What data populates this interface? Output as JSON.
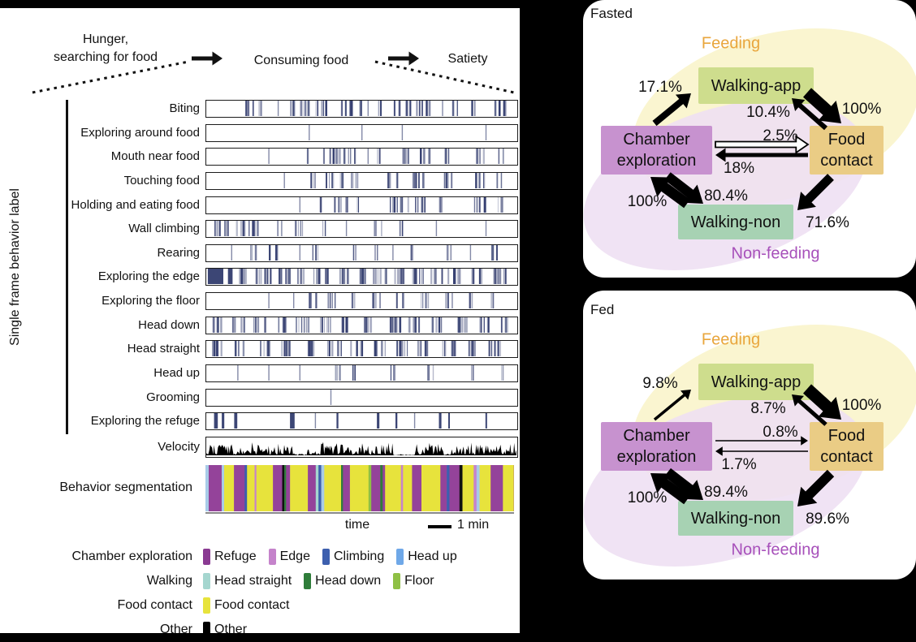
{
  "header": {
    "stage1_line1": "Hunger,",
    "stage1_line2": "searching for food",
    "stage2": "Consuming food",
    "stage3": "Satiety"
  },
  "left_panel": {
    "axis_label": "Single frame behavior label",
    "rows": [
      {
        "label": "Biting",
        "clusters": [
          [
            0.14,
            0.02,
            7
          ],
          [
            0.18,
            0.012,
            4
          ],
          [
            0.3,
            0.035,
            12
          ],
          [
            0.37,
            0.02,
            7
          ],
          [
            0.45,
            0.02,
            6
          ],
          [
            0.49,
            0.01,
            3
          ],
          [
            0.56,
            0.008,
            2
          ],
          [
            0.63,
            0.03,
            9
          ],
          [
            0.7,
            0.025,
            8
          ],
          [
            0.8,
            0.008,
            2
          ],
          [
            0.86,
            0.012,
            3
          ],
          [
            0.95,
            0.025,
            8
          ]
        ],
        "singles": [
          0.23,
          0.52,
          0.76
        ]
      },
      {
        "label": "Exploring around food",
        "clusters": [],
        "singles": [
          0.33,
          0.5,
          0.63,
          0.9
        ]
      },
      {
        "label": "Mouth near food",
        "clusters": [
          [
            0.33,
            0.01,
            3
          ],
          [
            0.4,
            0.03,
            9
          ],
          [
            0.46,
            0.02,
            6
          ],
          [
            0.55,
            0.008,
            2
          ],
          [
            0.63,
            0.025,
            7
          ],
          [
            0.7,
            0.02,
            5
          ],
          [
            0.78,
            0.015,
            4
          ],
          [
            0.88,
            0.015,
            4
          ],
          [
            0.95,
            0.01,
            3
          ]
        ],
        "singles": [
          0.2,
          0.52
        ]
      },
      {
        "label": "Touching food",
        "clusters": [
          [
            0.34,
            0.01,
            3
          ],
          [
            0.41,
            0.03,
            9
          ],
          [
            0.48,
            0.015,
            4
          ],
          [
            0.6,
            0.02,
            5
          ],
          [
            0.68,
            0.02,
            6
          ],
          [
            0.78,
            0.015,
            4
          ],
          [
            0.88,
            0.02,
            5
          ],
          [
            0.94,
            0.01,
            3
          ]
        ],
        "singles": [
          0.25
        ]
      },
      {
        "label": "Holding and eating food",
        "clusters": [
          [
            0.37,
            0.008,
            2
          ],
          [
            0.43,
            0.025,
            7
          ],
          [
            0.48,
            0.012,
            3
          ],
          [
            0.62,
            0.03,
            9
          ],
          [
            0.69,
            0.02,
            6
          ],
          [
            0.76,
            0.012,
            3
          ],
          [
            0.88,
            0.025,
            7
          ],
          [
            0.95,
            0.012,
            3
          ]
        ],
        "singles": [
          0.3
        ]
      },
      {
        "label": "Wall climbing",
        "clusters": [
          [
            0.05,
            0.025,
            7
          ],
          [
            0.11,
            0.015,
            4
          ],
          [
            0.16,
            0.025,
            7
          ],
          [
            0.23,
            0.012,
            3
          ],
          [
            0.3,
            0.015,
            4
          ],
          [
            0.38,
            0.008,
            2
          ],
          [
            0.55,
            0.015,
            4
          ],
          [
            0.63,
            0.01,
            3
          ]
        ],
        "singles": [
          0.45,
          0.74,
          0.9
        ]
      },
      {
        "label": "Rearing",
        "clusters": [
          [
            0.15,
            0.012,
            3
          ],
          [
            0.22,
            0.02,
            5
          ],
          [
            0.35,
            0.012,
            3
          ],
          [
            0.48,
            0.012,
            3
          ],
          [
            0.55,
            0.008,
            2
          ],
          [
            0.66,
            0.008,
            2
          ],
          [
            0.78,
            0.012,
            3
          ],
          [
            0.92,
            0.015,
            4
          ]
        ],
        "singles": [
          0.08,
          0.3,
          0.6,
          0.85
        ]
      },
      {
        "label": "Exploring the edge",
        "blocks": [
          [
            0.005,
            0.05
          ],
          [
            0.07,
            0.015
          ]
        ],
        "clusters": [
          [
            0.12,
            0.02,
            8
          ],
          [
            0.18,
            0.025,
            9
          ],
          [
            0.25,
            0.02,
            7
          ],
          [
            0.31,
            0.02,
            7
          ],
          [
            0.37,
            0.025,
            9
          ],
          [
            0.44,
            0.02,
            7
          ],
          [
            0.5,
            0.02,
            7
          ],
          [
            0.56,
            0.025,
            8
          ],
          [
            0.62,
            0.02,
            7
          ],
          [
            0.68,
            0.02,
            7
          ],
          [
            0.74,
            0.02,
            6
          ],
          [
            0.8,
            0.025,
            8
          ],
          [
            0.87,
            0.02,
            7
          ],
          [
            0.94,
            0.025,
            8
          ]
        ],
        "singles": []
      },
      {
        "label": "Exploring the floor",
        "clusters": [
          [
            0.34,
            0.012,
            4
          ],
          [
            0.4,
            0.015,
            4
          ],
          [
            0.47,
            0.012,
            3
          ],
          [
            0.55,
            0.015,
            4
          ],
          [
            0.62,
            0.012,
            3
          ],
          [
            0.7,
            0.015,
            4
          ],
          [
            0.78,
            0.012,
            3
          ],
          [
            0.85,
            0.012,
            3
          ],
          [
            0.92,
            0.012,
            3
          ]
        ],
        "singles": [
          0.2,
          0.28
        ]
      },
      {
        "label": "Head down",
        "clusters": [
          [
            0.03,
            0.02,
            6
          ],
          [
            0.1,
            0.02,
            6
          ],
          [
            0.17,
            0.02,
            6
          ],
          [
            0.24,
            0.02,
            6
          ],
          [
            0.31,
            0.025,
            8
          ],
          [
            0.38,
            0.02,
            6
          ],
          [
            0.45,
            0.02,
            6
          ],
          [
            0.52,
            0.02,
            6
          ],
          [
            0.6,
            0.025,
            7
          ],
          [
            0.67,
            0.02,
            6
          ],
          [
            0.74,
            0.02,
            5
          ],
          [
            0.82,
            0.02,
            6
          ],
          [
            0.9,
            0.025,
            7
          ],
          [
            0.96,
            0.012,
            4
          ]
        ],
        "singles": []
      },
      {
        "label": "Head straight",
        "clusters": [
          [
            0.04,
            0.025,
            7
          ],
          [
            0.11,
            0.02,
            6
          ],
          [
            0.18,
            0.02,
            6
          ],
          [
            0.26,
            0.02,
            6
          ],
          [
            0.33,
            0.02,
            6
          ],
          [
            0.41,
            0.025,
            7
          ],
          [
            0.48,
            0.02,
            6
          ],
          [
            0.56,
            0.02,
            6
          ],
          [
            0.63,
            0.02,
            6
          ],
          [
            0.7,
            0.02,
            6
          ],
          [
            0.78,
            0.02,
            6
          ],
          [
            0.85,
            0.02,
            6
          ],
          [
            0.93,
            0.025,
            7
          ]
        ],
        "singles": []
      },
      {
        "label": "Head up",
        "clusters": [
          [
            0.42,
            0.015,
            4
          ],
          [
            0.48,
            0.01,
            3
          ],
          [
            0.6,
            0.01,
            3
          ],
          [
            0.72,
            0.012,
            3
          ],
          [
            0.85,
            0.01,
            3
          ],
          [
            0.95,
            0.008,
            2
          ]
        ],
        "singles": [
          0.1,
          0.2,
          0.3
        ]
      },
      {
        "label": "Grooming",
        "clusters": [],
        "singles": [
          0.4
        ]
      },
      {
        "label": "Exploring the refuge",
        "blocks": [
          [
            0.025,
            0.012
          ],
          [
            0.05,
            0.008
          ],
          [
            0.09,
            0.01
          ],
          [
            0.27,
            0.015
          ],
          [
            0.42,
            0.006
          ],
          [
            0.55,
            0.008
          ],
          [
            0.61,
            0.006
          ],
          [
            0.75,
            0.008
          ],
          [
            0.78,
            0.005
          ],
          [
            0.9,
            0.005
          ]
        ],
        "clusters": [],
        "singles": [
          0.35,
          0.67
        ]
      }
    ],
    "velocity_label": "Velocity",
    "segmentation_label": "Behavior segmentation",
    "time_label": "time",
    "scale_label": "1 min",
    "legend": [
      {
        "category": "Chamber exploration",
        "items": [
          {
            "label": "Refuge",
            "color": "#8a3a92"
          },
          {
            "label": "Edge",
            "color": "#c583cb"
          },
          {
            "label": "Climbing",
            "color": "#3d5fae"
          },
          {
            "label": "Head up",
            "color": "#6fa8e8"
          }
        ]
      },
      {
        "category": "Walking",
        "items": [
          {
            "label": "Head straight",
            "color": "#a5d6cf"
          },
          {
            "label": "Head down",
            "color": "#2f7d3a"
          },
          {
            "label": "Floor",
            "color": "#8fc045"
          }
        ]
      },
      {
        "category": "Food contact",
        "items": [
          {
            "label": "Food contact",
            "color": "#e7e33c"
          }
        ]
      },
      {
        "category": "Other",
        "items": [
          {
            "label": "Other",
            "color": "#000000"
          }
        ]
      }
    ]
  },
  "segmentation": {
    "seed": 12,
    "palette": [
      {
        "name": "food-contact",
        "color": "#e7e33c",
        "weight": 0.38,
        "wmin": 4,
        "wmax": 26
      },
      {
        "name": "refuge",
        "color": "#94439a",
        "weight": 0.24,
        "wmin": 3,
        "wmax": 20
      },
      {
        "name": "climbing",
        "color": "#3d5fae",
        "weight": 0.07,
        "wmin": 1.5,
        "wmax": 4
      },
      {
        "name": "head-up",
        "color": "#a8cbe8",
        "weight": 0.06,
        "wmin": 1.5,
        "wmax": 4
      },
      {
        "name": "head-down",
        "color": "#2f7d3a",
        "weight": 0.08,
        "wmin": 1.5,
        "wmax": 4
      },
      {
        "name": "floor",
        "color": "#8fc045",
        "weight": 0.05,
        "wmin": 1.5,
        "wmax": 4
      },
      {
        "name": "head-straight",
        "color": "#a5d6cf",
        "weight": 0.04,
        "wmin": 1.5,
        "wmax": 3.5
      },
      {
        "name": "edge",
        "color": "#c583cb",
        "weight": 0.04,
        "wmin": 1.5,
        "wmax": 3.5
      },
      {
        "name": "other",
        "color": "#111111",
        "weight": 0.04,
        "wmin": 2,
        "wmax": 4
      }
    ]
  },
  "velocity": {
    "seed": 40,
    "quiet_zones": [
      [
        0.285,
        0.325
      ],
      [
        0.6,
        0.675
      ],
      [
        0.765,
        0.79
      ]
    ]
  },
  "colors": {
    "tick": "#323c6e",
    "feeding_fill": "#faf5d0",
    "nonfeeding_fill": "#eedff2",
    "feeding_text": "#e9a63d",
    "nonfeeding_text": "#a750ba",
    "node_walking_app": "#cedd8d",
    "node_chamber": "#c792cf",
    "node_food": "#eacc85",
    "node_walking_non": "#a7d2b3"
  },
  "diagrams": [
    {
      "title": "Fasted",
      "feeding_label": "Feeding",
      "nonfeeding_label": "Non-feeding",
      "nodes": {
        "walking_app": "Walking-app",
        "chamber": "Chamber exploration",
        "food": "Food contact",
        "walking_non": "Walking-non"
      },
      "transitions": [
        {
          "id": "chamber_app",
          "label": "17.1%",
          "width": 8,
          "style": "solid"
        },
        {
          "id": "food_app",
          "label": "10.4%",
          "width": 6,
          "style": "solid"
        },
        {
          "id": "app_food",
          "label": "100%",
          "width": 15,
          "style": "solid"
        },
        {
          "id": "chamber_food",
          "label": "2.5%",
          "width": 7,
          "style": "hollow"
        },
        {
          "id": "food_chamber",
          "label": "18%",
          "width": 5,
          "style": "solid"
        },
        {
          "id": "non_chamber",
          "label": "100%",
          "width": 13,
          "style": "solid"
        },
        {
          "id": "chamber_non",
          "label": "80.4%",
          "width": 12,
          "style": "solid"
        },
        {
          "id": "food_non",
          "label": "71.6%",
          "width": 11,
          "style": "solid"
        }
      ]
    },
    {
      "title": "Fed",
      "feeding_label": "Feeding",
      "nonfeeding_label": "Non-feeding",
      "nodes": {
        "walking_app": "Walking-app",
        "chamber": "Chamber exploration",
        "food": "Food contact",
        "walking_non": "Walking-non"
      },
      "transitions": [
        {
          "id": "chamber_app",
          "label": "9.8%",
          "width": 3.5,
          "style": "solid"
        },
        {
          "id": "food_app",
          "label": "8.7%",
          "width": 5,
          "style": "solid"
        },
        {
          "id": "app_food",
          "label": "100%",
          "width": 15,
          "style": "solid"
        },
        {
          "id": "chamber_food",
          "label": "0.8%",
          "width": 1.6,
          "style": "solid"
        },
        {
          "id": "food_chamber",
          "label": "1.7%",
          "width": 1.6,
          "style": "solid"
        },
        {
          "id": "non_chamber",
          "label": "100%",
          "width": 13,
          "style": "solid"
        },
        {
          "id": "chamber_non",
          "label": "89.4%",
          "width": 13,
          "style": "solid"
        },
        {
          "id": "food_non",
          "label": "89.6%",
          "width": 12,
          "style": "solid"
        }
      ]
    }
  ]
}
